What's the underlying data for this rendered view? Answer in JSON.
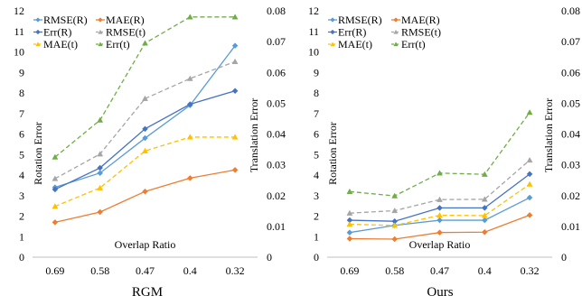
{
  "chart_data": [
    {
      "type": "line",
      "caption": "RGM",
      "categories": [
        "0.69",
        "0.58",
        "0.47",
        "0.4",
        "0.32"
      ],
      "xlabel": "Overlap Ratio",
      "ylabel": "Rotation Error",
      "y2label": "Translation Error",
      "ylim": [
        0,
        12
      ],
      "y2lim": [
        0,
        0.08
      ],
      "yticks": [
        "0",
        "1",
        "2",
        "3",
        "4",
        "5",
        "6",
        "7",
        "8",
        "9",
        "10",
        "11",
        "12"
      ],
      "y2ticks": [
        "0",
        "0.01",
        "0.02",
        "0.03",
        "0.04",
        "0.05",
        "0.06",
        "0.07",
        "0.08"
      ],
      "grid": false,
      "legend_position": "top-left",
      "series": [
        {
          "name": "RMSE(R)",
          "axis": "left",
          "color": "#5b9bd5",
          "dash": "",
          "marker": "diamond",
          "values": [
            3.4,
            4.1,
            5.8,
            7.4,
            10.3
          ]
        },
        {
          "name": "MAE(R)",
          "axis": "left",
          "color": "#ed7d31",
          "dash": "",
          "marker": "diamond",
          "values": [
            1.7,
            2.2,
            3.2,
            3.85,
            4.25
          ]
        },
        {
          "name": "Err(R)",
          "axis": "left",
          "color": "#4472c4",
          "dash": "",
          "marker": "diamond",
          "values": [
            3.3,
            4.35,
            6.25,
            7.45,
            8.1
          ]
        },
        {
          "name": "RMSE(t)",
          "axis": "right",
          "color": "#a5a5a5",
          "dash": "5,3",
          "marker": "triangle",
          "values": [
            0.0255,
            0.0335,
            0.0515,
            0.058,
            0.0635
          ]
        },
        {
          "name": "MAE(t)",
          "axis": "right",
          "color": "#ffc000",
          "dash": "5,3",
          "marker": "triangle",
          "values": [
            0.0165,
            0.0225,
            0.0345,
            0.039,
            0.039
          ]
        },
        {
          "name": "Err(t)",
          "axis": "right",
          "color": "#70ad47",
          "dash": "5,3",
          "marker": "triangle",
          "values": [
            0.0325,
            0.0445,
            0.0695,
            0.078,
            0.078
          ]
        }
      ]
    },
    {
      "type": "line",
      "caption": "Ours",
      "categories": [
        "0.69",
        "0.58",
        "0.47",
        "0.4",
        "0.32"
      ],
      "xlabel": "Overlap Ratio",
      "ylabel": "Rotation Error",
      "y2label": "Translation Error",
      "ylim": [
        0,
        12
      ],
      "y2lim": [
        0,
        0.08
      ],
      "yticks": [
        "0",
        "1",
        "2",
        "3",
        "4",
        "5",
        "6",
        "7",
        "8",
        "9",
        "10",
        "11",
        "12"
      ],
      "y2ticks": [
        "0",
        "0.01",
        "0.02",
        "0.03",
        "0.04",
        "0.05",
        "0.06",
        "0.07",
        "0.08"
      ],
      "grid": false,
      "legend_position": "top-left",
      "series": [
        {
          "name": "RMSE(R)",
          "axis": "left",
          "color": "#5b9bd5",
          "dash": "",
          "marker": "diamond",
          "values": [
            1.2,
            1.55,
            1.8,
            1.8,
            2.9
          ]
        },
        {
          "name": "MAE(R)",
          "axis": "left",
          "color": "#ed7d31",
          "dash": "",
          "marker": "diamond",
          "values": [
            0.9,
            0.88,
            1.2,
            1.22,
            2.05
          ]
        },
        {
          "name": "Err(R)",
          "axis": "left",
          "color": "#4472c4",
          "dash": "",
          "marker": "diamond",
          "values": [
            1.8,
            1.75,
            2.4,
            2.4,
            4.05
          ]
        },
        {
          "name": "RMSE(t)",
          "axis": "right",
          "color": "#a5a5a5",
          "dash": "5,3",
          "marker": "triangle",
          "values": [
            0.0143,
            0.0151,
            0.0187,
            0.0188,
            0.0315
          ]
        },
        {
          "name": "MAE(t)",
          "axis": "right",
          "color": "#ffc000",
          "dash": "5,3",
          "marker": "triangle",
          "values": [
            0.0107,
            0.0103,
            0.0136,
            0.0135,
            0.0237
          ]
        },
        {
          "name": "Err(t)",
          "axis": "right",
          "color": "#70ad47",
          "dash": "5,3",
          "marker": "triangle",
          "values": [
            0.0213,
            0.0199,
            0.0273,
            0.0269,
            0.047
          ]
        }
      ]
    }
  ]
}
